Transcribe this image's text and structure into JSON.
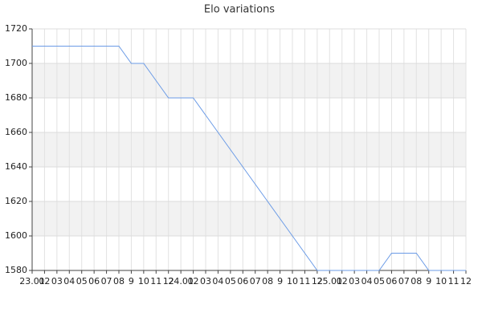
{
  "chart_data": {
    "type": "line",
    "title": "Elo variations",
    "categories": [
      "23.01",
      "02",
      "03",
      "04",
      "05",
      "06",
      "07",
      "08",
      "9",
      "10",
      "11",
      "12",
      "24.01",
      "02",
      "03",
      "04",
      "05",
      "06",
      "07",
      "08",
      "9",
      "10",
      "11",
      "12",
      "25.01",
      "02",
      "03",
      "04",
      "05",
      "06",
      "07",
      "08",
      "9",
      "10",
      "11",
      "12"
    ],
    "values": [
      1710,
      1710,
      1710,
      1710,
      1710,
      1710,
      1710,
      1710,
      1700,
      1700,
      1690,
      1680,
      1680,
      1680,
      1670,
      1660,
      1650,
      1640,
      1630,
      1620,
      1610,
      1600,
      1590,
      1580,
      1580,
      1580,
      1580,
      1580,
      1580,
      1590,
      1590,
      1590,
      1580,
      1580,
      1580,
      1580
    ],
    "color": "#6b9be6",
    "ylim": [
      1580,
      1720
    ],
    "yticks": [
      1580,
      1600,
      1620,
      1640,
      1660,
      1680,
      1700,
      1720
    ],
    "grid": true
  }
}
